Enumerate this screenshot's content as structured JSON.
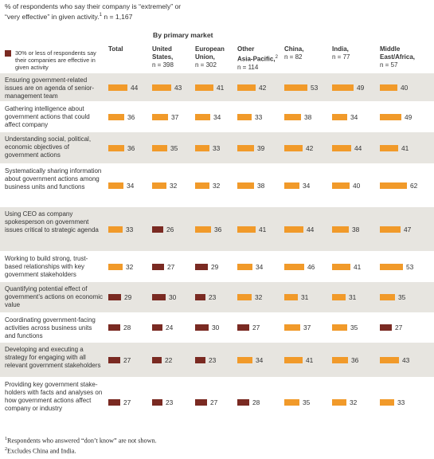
{
  "header": {
    "subtitle_line1": "% of respondents who say their company is “extremely” or",
    "subtitle_line2": "“very effective” in given activity.",
    "subtitle_sup": "1",
    "subtitle_n": " n = 1,167",
    "legend_text": "30% or less of respondents say their companies are effective in given activity",
    "by_primary_market": "By primary market"
  },
  "columns": [
    {
      "name": "Total",
      "n": ""
    },
    {
      "name": "United\nStates,",
      "n": "n = 398"
    },
    {
      "name": "European\nUnion,",
      "n": "n = 302"
    },
    {
      "name": "Other\nAsia-Pacific,",
      "sup": "2",
      "n": "n = 114"
    },
    {
      "name": "China,",
      "n": "n = 82"
    },
    {
      "name": "India,",
      "n": "n = 77"
    },
    {
      "name": "Middle\nEast/Africa,",
      "n": "n = 57"
    }
  ],
  "colors": {
    "high": "#f19a2a",
    "low": "#7a2a22",
    "shade": "#e7e5e0"
  },
  "chart_data": {
    "type": "bar",
    "threshold": 30,
    "series_names": [
      "Total",
      "United States",
      "European Union",
      "Other Asia-Pacific",
      "China",
      "India",
      "Middle East/Africa"
    ],
    "rows": [
      {
        "label": "Ensuring government-related issues are on agenda of senior-management team",
        "values": [
          44,
          43,
          41,
          42,
          53,
          49,
          40
        ]
      },
      {
        "label": "Gathering intelligence about government actions that could affect company",
        "values": [
          36,
          37,
          34,
          33,
          38,
          34,
          49
        ]
      },
      {
        "label": "Understanding social, political, economic objectives of government actions",
        "values": [
          36,
          35,
          33,
          39,
          42,
          44,
          41
        ]
      },
      {
        "label": "Systematically sharing information about government actions among business units and functions",
        "values": [
          34,
          32,
          32,
          38,
          34,
          40,
          62
        ]
      },
      {
        "label": "Using CEO as company spokesperson on government issues critical to strategic agenda",
        "values": [
          33,
          26,
          36,
          41,
          44,
          38,
          47
        ]
      },
      {
        "label": "Working to build strong, trust-based relationships with key government stakeholders",
        "values": [
          32,
          27,
          29,
          34,
          46,
          41,
          53
        ]
      },
      {
        "label": "Quantifying potential effect of government’s actions on economic value",
        "values": [
          29,
          30,
          23,
          32,
          31,
          31,
          35
        ]
      },
      {
        "label": "Coordinating government-facing activities across business units and functions",
        "values": [
          28,
          24,
          30,
          27,
          37,
          35,
          27
        ]
      },
      {
        "label": "Developing and executing a strategy for engaging with all relevant government stakeholders",
        "values": [
          27,
          22,
          23,
          34,
          41,
          36,
          43
        ]
      },
      {
        "label": "Providing key government stake-holders with facts and analyses on how government actions affect company or industry",
        "values": [
          27,
          23,
          27,
          28,
          35,
          32,
          33
        ]
      }
    ]
  },
  "footnotes": {
    "f1_sup": "1",
    "f1_text": "Respondents who answered “don’t know” are not shown.",
    "f2_sup": "2",
    "f2_text": "Excludes China and India."
  }
}
